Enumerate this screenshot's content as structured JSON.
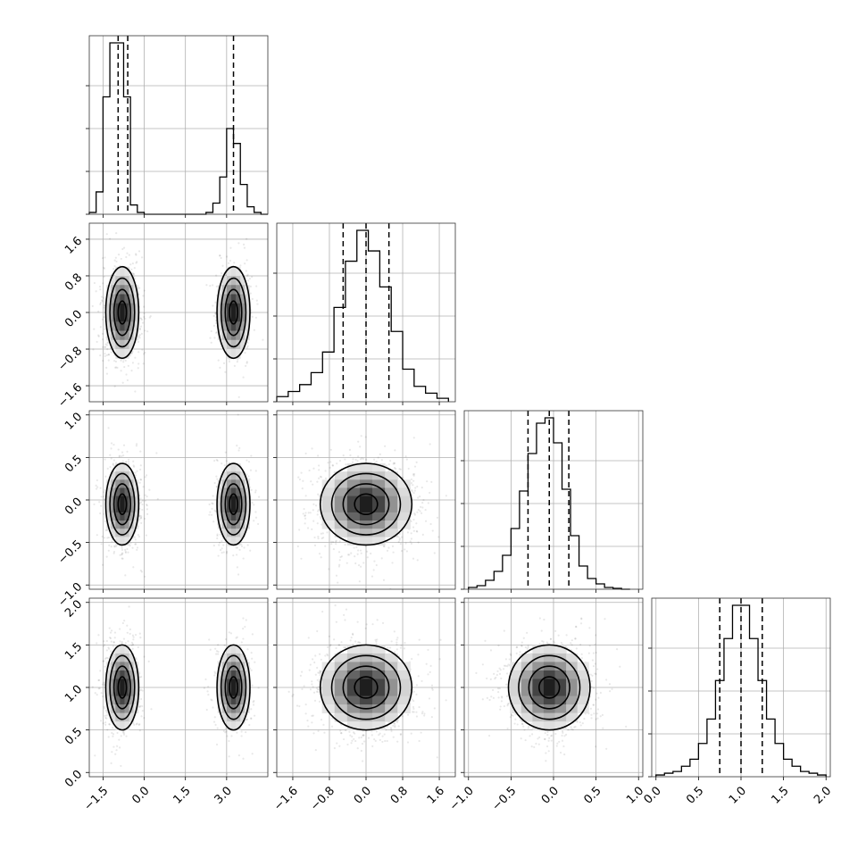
{
  "chart_data": {
    "type": "corner",
    "title": "",
    "n_parameters": 4,
    "grid": true,
    "parameters": [
      {
        "label": "",
        "range": [
          -2.0,
          4.5
        ],
        "ticks": [
          -1.5,
          0.0,
          1.5,
          3.0
        ],
        "tick_labels": [
          "−1.5",
          "0.0",
          "1.5",
          "3.0"
        ],
        "quantiles": [
          -0.95,
          -0.6,
          3.25
        ],
        "hist_bin_edges": [
          -2.0,
          -1.75,
          -1.5,
          -1.25,
          -1.0,
          -0.75,
          -0.5,
          -0.25,
          0.0,
          0.25,
          0.5,
          0.75,
          1.0,
          1.25,
          1.5,
          1.75,
          2.0,
          2.25,
          2.5,
          2.75,
          3.0,
          3.25,
          3.5,
          3.75,
          4.0,
          4.25,
          4.5
        ],
        "hist_values": [
          0.01,
          0.12,
          0.63,
          0.92,
          0.92,
          0.63,
          0.05,
          0.01,
          0,
          0,
          0,
          0,
          0,
          0,
          0,
          0,
          0,
          0.01,
          0.06,
          0.2,
          0.46,
          0.38,
          0.16,
          0.04,
          0.01,
          0
        ],
        "modes": [
          {
            "mean": -0.8,
            "sd": 0.3,
            "weight": 0.65
          },
          {
            "mean": 3.25,
            "sd": 0.3,
            "weight": 0.35
          }
        ]
      },
      {
        "label": "",
        "range": [
          -1.95,
          1.95
        ],
        "ticks": [
          -1.6,
          -0.8,
          0.0,
          0.8,
          1.6
        ],
        "tick_labels": [
          "−1.6",
          "−0.8",
          "0.0",
          "0.8",
          "1.6"
        ],
        "quantiles": [
          -0.5,
          0.0,
          0.5
        ],
        "hist_bin_edges": [
          -1.95,
          -1.7,
          -1.45,
          -1.2,
          -0.95,
          -0.7,
          -0.45,
          -0.2,
          0.05,
          0.3,
          0.55,
          0.8,
          1.05,
          1.3,
          1.55,
          1.8
        ],
        "hist_values": [
          0.03,
          0.06,
          0.1,
          0.17,
          0.29,
          0.55,
          0.82,
          1.0,
          0.88,
          0.67,
          0.41,
          0.19,
          0.09,
          0.05,
          0.02
        ],
        "mean": 0.0,
        "sd": 0.5
      },
      {
        "label": "",
        "range": [
          -1.05,
          1.05
        ],
        "ticks": [
          -1.0,
          -0.5,
          0.0,
          0.5,
          1.0
        ],
        "tick_labels": [
          "−1.0",
          "−0.5",
          "0.0",
          "0.5",
          "1.0"
        ],
        "quantiles": [
          -0.3,
          -0.05,
          0.18
        ],
        "hist_bin_edges": [
          -1.0,
          -0.9,
          -0.8,
          -0.7,
          -0.6,
          -0.5,
          -0.4,
          -0.3,
          -0.2,
          -0.1,
          0.0,
          0.1,
          0.2,
          0.3,
          0.4,
          0.5,
          0.6,
          0.7,
          0.8,
          0.9
        ],
        "hist_values": [
          0.01,
          0.02,
          0.05,
          0.1,
          0.19,
          0.34,
          0.55,
          0.76,
          0.93,
          0.96,
          0.82,
          0.56,
          0.3,
          0.13,
          0.06,
          0.03,
          0.01,
          0.005,
          0
        ],
        "mean": -0.05,
        "sd": 0.24
      },
      {
        "label": "",
        "range": [
          -0.05,
          2.05
        ],
        "ticks": [
          0.0,
          0.5,
          1.0,
          1.5,
          2.0
        ],
        "tick_labels": [
          "0.0",
          "0.5",
          "1.0",
          "1.5",
          "2.0"
        ],
        "quantiles": [
          0.75,
          1.0,
          1.25
        ],
        "hist_bin_edges": [
          0.0,
          0.1,
          0.2,
          0.3,
          0.4,
          0.5,
          0.6,
          0.7,
          0.8,
          0.9,
          1.0,
          1.1,
          1.2,
          1.3,
          1.4,
          1.5,
          1.6,
          1.7,
          1.8,
          1.9,
          2.0
        ],
        "hist_values": [
          0.01,
          0.02,
          0.03,
          0.06,
          0.1,
          0.19,
          0.33,
          0.55,
          0.79,
          0.98,
          0.98,
          0.79,
          0.55,
          0.33,
          0.19,
          0.1,
          0.06,
          0.03,
          0.02,
          0.01
        ],
        "mean": 1.0,
        "sd": 0.25
      }
    ],
    "colors": {
      "line": "#000000",
      "frame": "#333333",
      "grid": "#b0b0b0",
      "points": "#000000"
    }
  }
}
